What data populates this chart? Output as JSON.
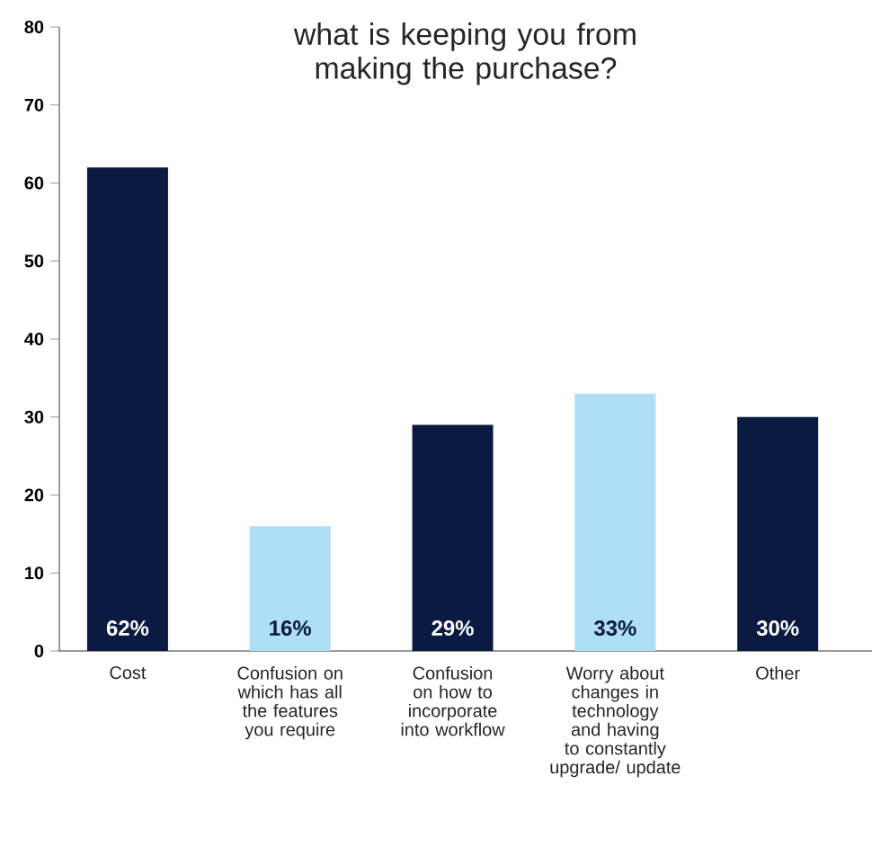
{
  "chart_data": {
    "type": "bar",
    "title": "what is keeping you from making the purchase?",
    "categories": [
      "Cost",
      "Confusion on which has all the features you require",
      "Confusion on how to incorporate into workflow",
      "Worry about changes in technology and having to constantly upgrade/ update",
      "Other"
    ],
    "values": [
      62,
      16,
      29,
      33,
      30
    ],
    "colors": [
      "#0b1a40",
      "#aedff7",
      "#0b1a40",
      "#aedff7",
      "#0b1a40"
    ],
    "value_labels": [
      "62%",
      "16%",
      "29%",
      "33%",
      "30%"
    ],
    "ylim": [
      0,
      80
    ],
    "yticks": [
      0,
      10,
      20,
      30,
      40,
      50,
      60,
      70,
      80
    ]
  }
}
